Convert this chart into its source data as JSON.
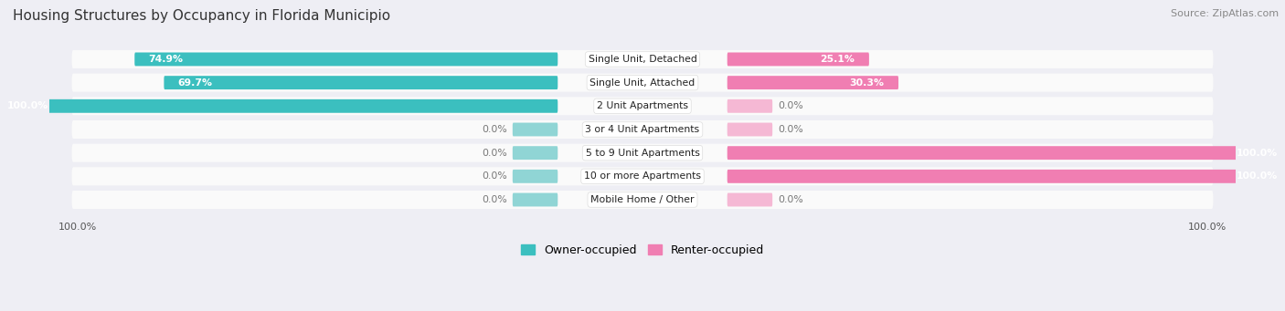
{
  "title": "Housing Structures by Occupancy in Florida Municipio",
  "source": "Source: ZipAtlas.com",
  "categories": [
    "Single Unit, Detached",
    "Single Unit, Attached",
    "2 Unit Apartments",
    "3 or 4 Unit Apartments",
    "5 to 9 Unit Apartments",
    "10 or more Apartments",
    "Mobile Home / Other"
  ],
  "owner_pct": [
    74.9,
    69.7,
    100.0,
    0.0,
    0.0,
    0.0,
    0.0
  ],
  "renter_pct": [
    25.1,
    30.3,
    0.0,
    0.0,
    100.0,
    100.0,
    0.0
  ],
  "owner_color": "#3BBFBF",
  "renter_color": "#F07EB2",
  "owner_stub_color": "#90D5D5",
  "renter_stub_color": "#F5B8D4",
  "background_color": "#EEEEF4",
  "bar_background": "#FAFAFA",
  "label_fontsize": 7.8,
  "title_fontsize": 11,
  "source_fontsize": 8,
  "axis_label_fontsize": 8
}
